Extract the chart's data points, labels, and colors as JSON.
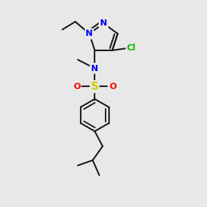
{
  "background_color": "#e8e8e8",
  "bond_color": "#1a1a1a",
  "bond_width": 1.6,
  "fig_width": 3.0,
  "fig_height": 3.0,
  "dpi": 100,
  "colors": {
    "N": "#0000ee",
    "Cl": "#00bb00",
    "S": "#cccc00",
    "O": "#ff0000",
    "C": "#1a1a1a"
  }
}
